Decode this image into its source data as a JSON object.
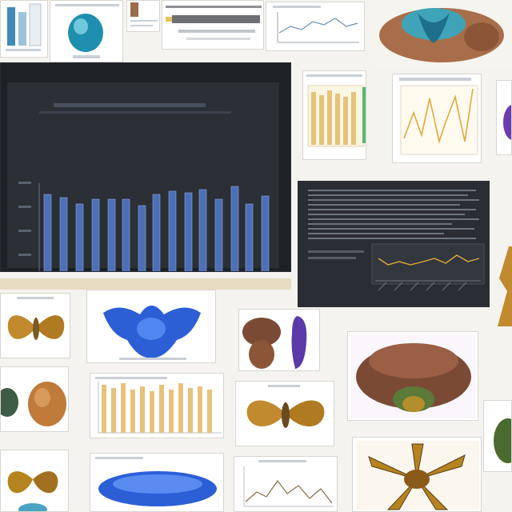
{
  "colors": {
    "background": "#f4f3ef",
    "dark_panel": "#1e2126",
    "bar_blue": "#4d6fb8",
    "bar_gold": "#e6c27a",
    "line_gold": "#e0a93a",
    "specimen_brown": "#7b4a35",
    "specimen_gold": "#c28a2e",
    "specimen_blue": "#2c5fd6",
    "specimen_teal": "#1f8fb0"
  },
  "icons": [
    "thumbnail-grid-icon"
  ],
  "tiles": {
    "t1": {
      "icon": "teal-specimen-icon"
    },
    "t2": {
      "icon": "ruler-icon"
    },
    "t3": {
      "icon": "brain-specimen-icon"
    },
    "t4": {
      "icon": "gold-butterfly-icon"
    },
    "t5": {
      "icon": "blue-specimen-icon"
    },
    "t6": {
      "icon": "purple-specimen-icon"
    },
    "t7": {
      "icon": "brown-cluster-icon"
    },
    "t8": {
      "icon": "blue-blob-icon"
    },
    "t9": {
      "icon": "gold-star-specimen-icon"
    }
  }
}
